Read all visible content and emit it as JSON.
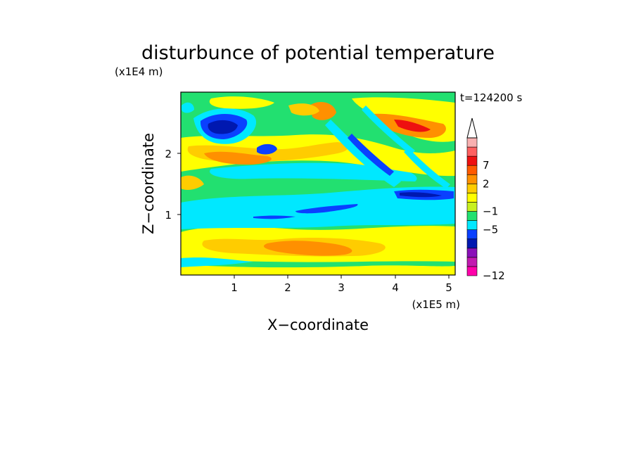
{
  "chart_data": {
    "type": "heatmap",
    "title": "disturbunce of potential temperature",
    "time_label": "t=124200 s",
    "xlabel": "X−coordinate",
    "ylabel": "Z−coordinate",
    "x_unit": "(x1E5 m)",
    "y_unit": "(x1E4 m)",
    "xlim": [
      0,
      5.15
    ],
    "ylim": [
      0,
      3.0
    ],
    "x_ticks": [
      "1",
      "2",
      "3",
      "4",
      "5"
    ],
    "y_ticks": [
      "1",
      "2"
    ],
    "colorbar": {
      "colors": [
        "#ff00aa",
        "#c21ab0",
        "#8a10b8",
        "#0018b0",
        "#0a40ff",
        "#00e8ff",
        "#22e070",
        "#c8f020",
        "#ffff00",
        "#ffcc00",
        "#ff9000",
        "#ff5a00",
        "#ee1010",
        "#ff6060",
        "#f8b0b0"
      ],
      "tick_labels": [
        "−12",
        "−5",
        "−1",
        "2",
        "7"
      ],
      "extend": "max"
    },
    "dominant_bands": [
      {
        "z_range": [
          0.0,
          0.35
        ],
        "level": "yellow / orange, small scale"
      },
      {
        "z_range": [
          0.35,
          0.75
        ],
        "level": "yellow / orange (positive)"
      },
      {
        "z_range": [
          0.75,
          1.35
        ],
        "level": "cyan (negative) with thin blue streaks"
      },
      {
        "z_range": [
          1.35,
          1.7
        ],
        "level": "green / cyan"
      },
      {
        "z_range": [
          1.7,
          2.3
        ],
        "level": "orange / red cores with blue lobes near x=0.4–1.5"
      },
      {
        "z_range": [
          2.3,
          3.0
        ],
        "level": "alternating tilted wave bands (x=3–5)"
      }
    ]
  }
}
